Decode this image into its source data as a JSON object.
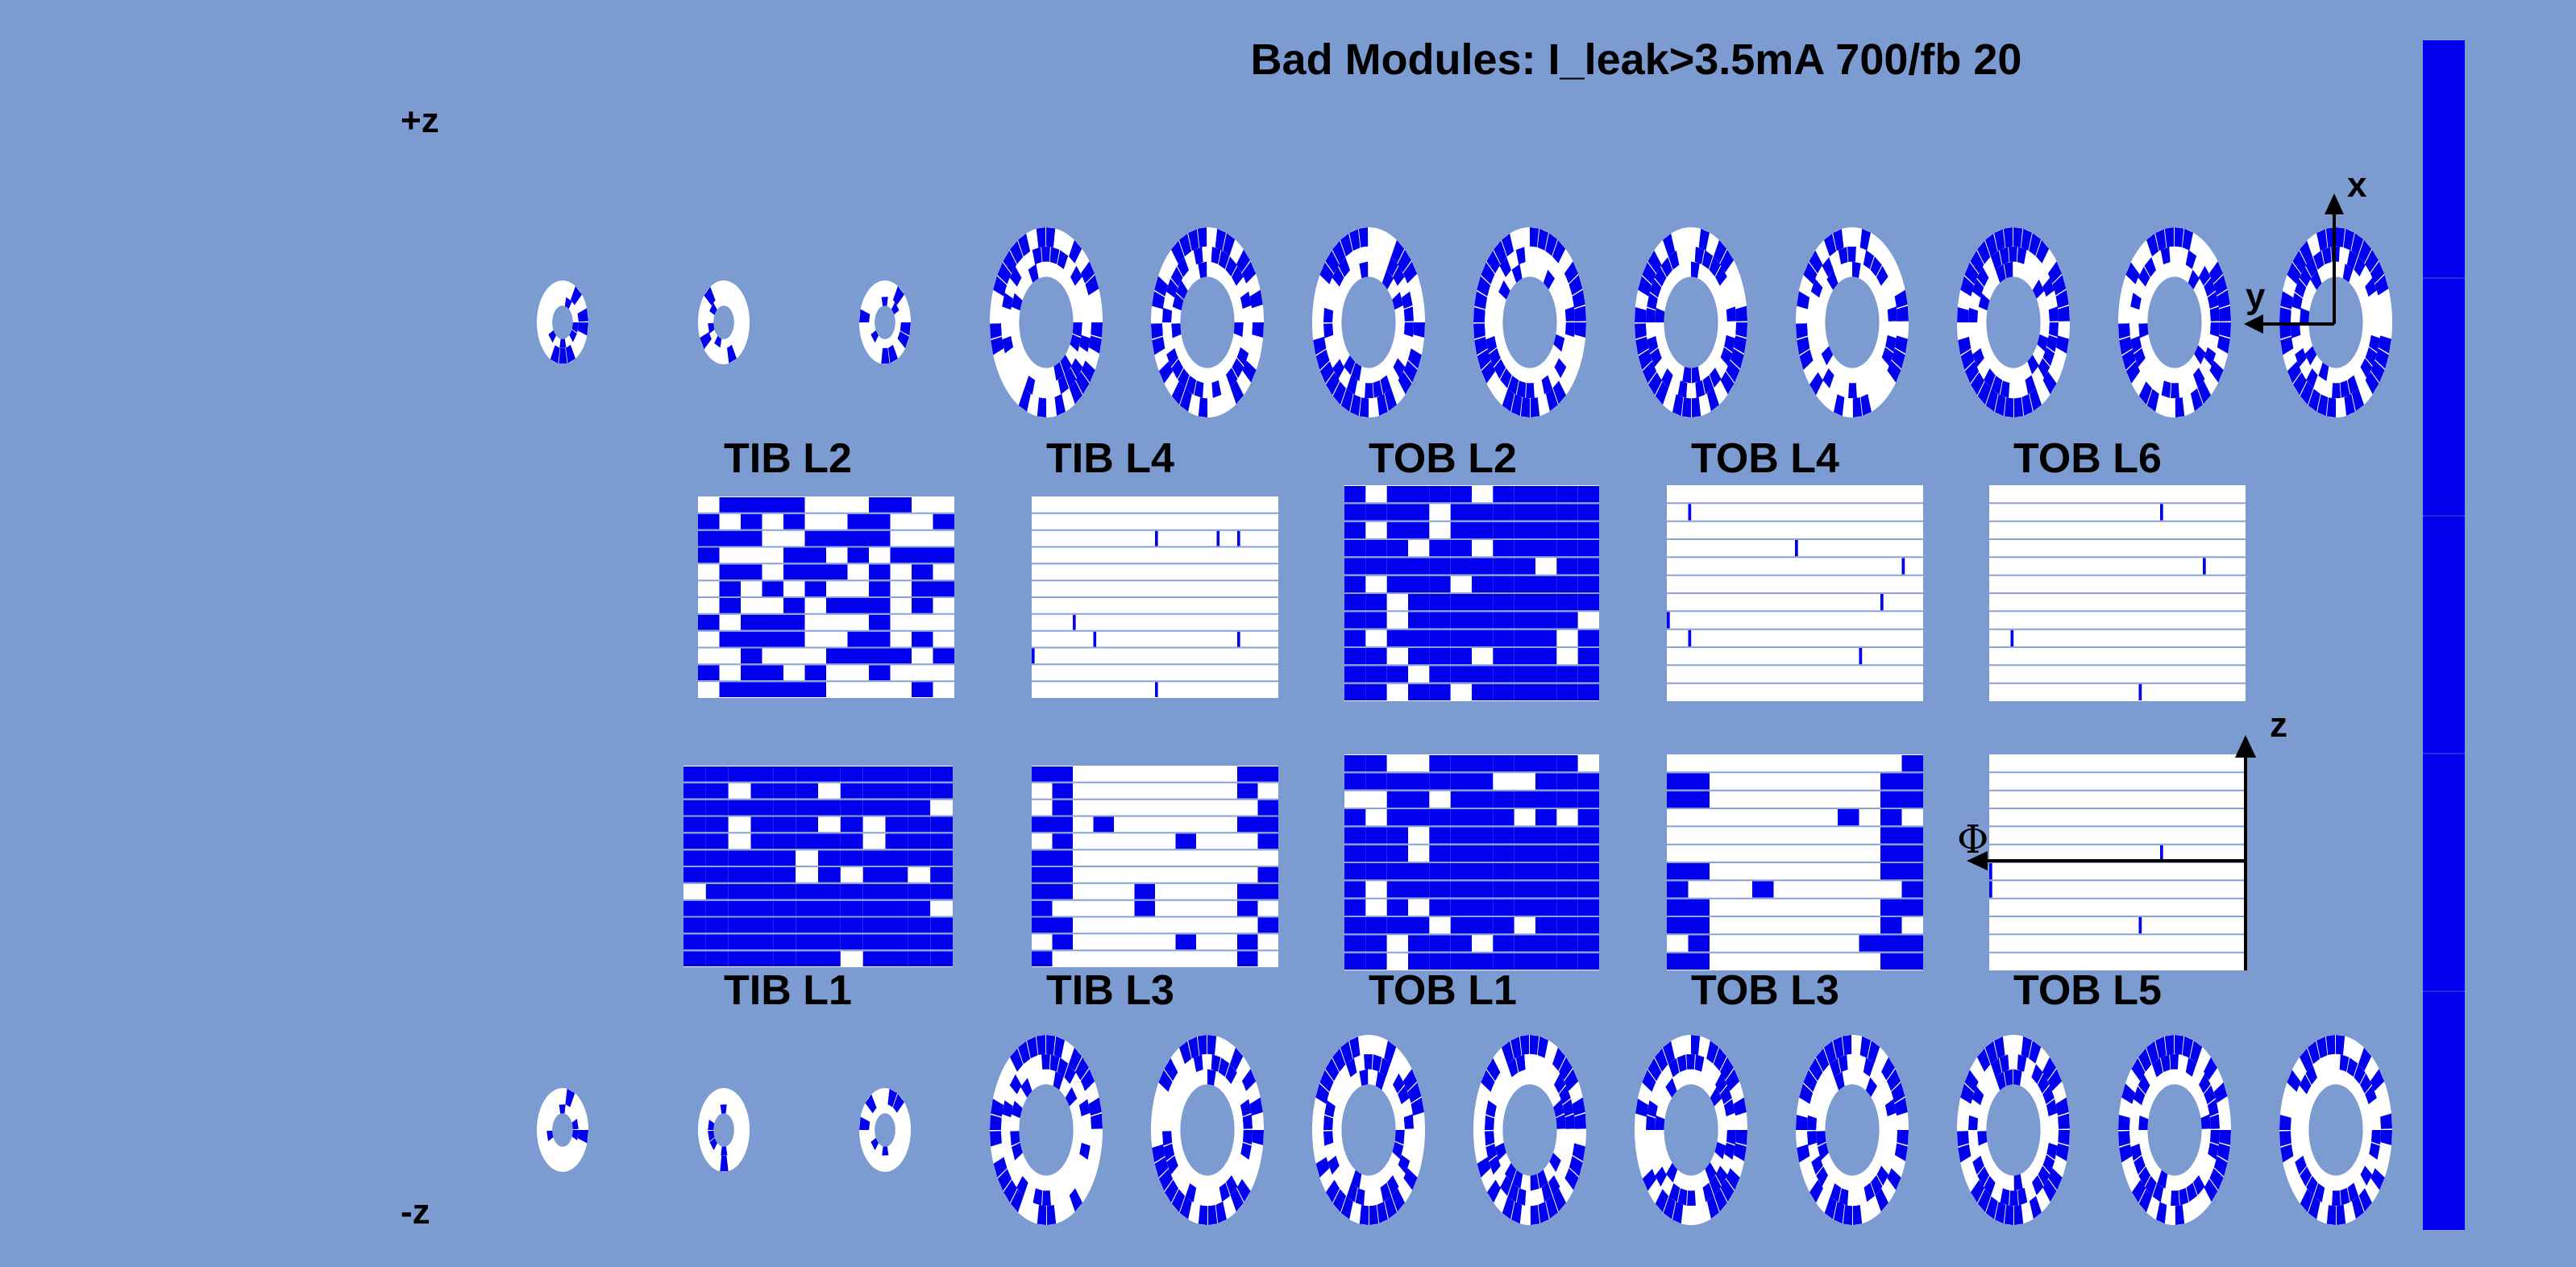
{
  "title": "Bad Modules: I_leak>3.5mA 700/fb 20",
  "side_labels": {
    "plus_z": "+z",
    "minus_z": "-z"
  },
  "axis_labels": {
    "x": "x",
    "y": "y",
    "z": "z",
    "phi": "Φ"
  },
  "colors": {
    "background": "#7b9bd1",
    "bad": "#0000ee",
    "good": "#ffffff",
    "line": "#000000",
    "colorbar": "#0000ee"
  },
  "disks": {
    "plus_z": {
      "small": 3,
      "large": 9
    },
    "minus_z": {
      "small": 3,
      "large": 9
    }
  },
  "barrel_layers": {
    "top_row": [
      {
        "name": "TIB L2",
        "fill": "mixed"
      },
      {
        "name": "TIB L4",
        "fill": "sparse"
      },
      {
        "name": "TOB L2",
        "fill": "dense"
      },
      {
        "name": "TOB L4",
        "fill": "sparse"
      },
      {
        "name": "TOB L6",
        "fill": "sparse"
      }
    ],
    "bottom_row": [
      {
        "name": "TIB L1",
        "fill": "dense"
      },
      {
        "name": "TIB L3",
        "fill": "partial"
      },
      {
        "name": "TOB L1",
        "fill": "dense"
      },
      {
        "name": "TOB L3",
        "fill": "partial"
      },
      {
        "name": "TOB L5",
        "fill": "sparse"
      }
    ]
  }
}
